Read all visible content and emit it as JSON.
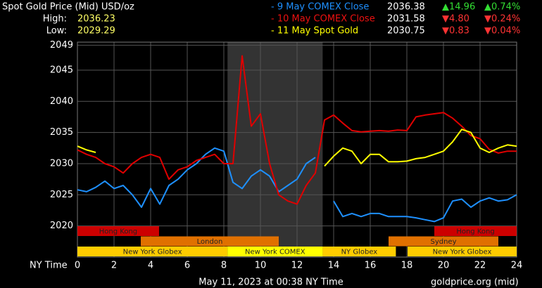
{
  "header": {
    "title": "Spot Gold Price (Mid) USD/oz",
    "high_label": "High:",
    "high": "2036.23",
    "low_label": "Low:",
    "low": "2029.29",
    "rows": [
      {
        "label": "- 9 May COMEX Close",
        "price": "2036.38",
        "change": "▲14.96",
        "percent": "▲0.74%",
        "color": "#1e90ff",
        "change_color": "#33dd33"
      },
      {
        "label": "- 10 May COMEX Close",
        "price": "2031.58",
        "change": "▼4.80",
        "percent": "▼0.24%",
        "color": "#ee1111",
        "change_color": "#ff3333"
      },
      {
        "label": "- 11 May Spot Gold",
        "price": "2030.75",
        "change": "▼0.83",
        "percent": "▼0.04%",
        "color": "#ffff00",
        "change_color": "#ff3333"
      }
    ]
  },
  "chart_data": {
    "type": "line",
    "x_label": "NY Time",
    "footer": "May 11, 2023 at 00:38 NY Time",
    "source": "goldprice.org (mid)",
    "x": [
      0,
      0.5,
      1,
      1.5,
      2,
      2.5,
      3,
      3.5,
      4,
      4.5,
      5,
      5.5,
      6,
      6.5,
      7,
      7.5,
      8,
      8.5,
      9,
      9.5,
      10,
      10.5,
      11,
      11.5,
      12,
      12.5,
      13,
      13.5,
      14,
      14.5,
      15,
      15.5,
      16,
      16.5,
      17,
      17.5,
      18,
      18.5,
      19,
      19.5,
      20,
      20.5,
      21,
      21.5,
      22,
      22.5,
      23,
      23.5,
      24
    ],
    "series": [
      {
        "name": "9 May COMEX Close",
        "color": "#1e90ff",
        "values": [
          2025.8,
          2025.5,
          2026.2,
          2027.2,
          2026,
          2026.5,
          2025,
          2023,
          2026,
          2023.5,
          2026.5,
          2027.5,
          2029,
          2030,
          2031.5,
          2032.5,
          2032,
          2027,
          2026,
          2028,
          2029,
          2028,
          2025.5,
          2026.5,
          2027.5,
          2030,
          2031,
          null,
          2024,
          2021.5,
          2022,
          2021.5,
          2022,
          2022,
          2021.5,
          2021.5,
          2021.5,
          2021.3,
          2021,
          2020.7,
          2021.3,
          2024,
          2024.3,
          2023,
          2024,
          2024.5,
          2024,
          2024.2,
          2025
        ]
      },
      {
        "name": "10 May COMEX Close",
        "color": "#e00000",
        "values": [
          2032.2,
          2031.5,
          2031,
          2030,
          2029.5,
          2028.5,
          2030,
          2031,
          2031.5,
          2031,
          2027.5,
          2029,
          2029.5,
          2030.5,
          2031,
          2031.5,
          2030,
          2030,
          2047.3,
          2036,
          2038,
          2030,
          2025,
          2024,
          2023.5,
          2026.5,
          2028.5,
          2037,
          2037.8,
          2036.5,
          2035.3,
          2035.1,
          2035.2,
          2035.3,
          2035.2,
          2035.4,
          2035.3,
          2037.5,
          2037.8,
          2038,
          2038.2,
          2037.3,
          2036,
          2034.5,
          2034,
          2032.3,
          2031.7,
          2032,
          2032
        ]
      },
      {
        "name": "11 May Spot Gold",
        "color": "#ffff00",
        "values": [
          2032.8,
          2032.2,
          2031.8,
          null,
          null,
          null,
          null,
          null,
          null,
          null,
          null,
          null,
          null,
          null,
          null,
          null,
          null,
          null,
          null,
          null,
          null,
          null,
          null,
          null,
          null,
          null,
          null,
          2029.6,
          2031.2,
          2032.5,
          2032,
          2030,
          2031.5,
          2031.5,
          2030.3,
          2030.3,
          2030.4,
          2030.8,
          2031,
          2031.5,
          2032,
          2033.5,
          2035.5,
          2035,
          2032.5,
          2031.8,
          2032.5,
          2033,
          2032.8
        ]
      }
    ],
    "xlim": [
      0,
      24
    ],
    "xticks": [
      0,
      2,
      4,
      6,
      8,
      10,
      12,
      14,
      16,
      18,
      20,
      22,
      24
    ],
    "ylim": [
      2015,
      2049.5
    ],
    "yticks": [
      2020,
      2025,
      2030,
      2035,
      2040,
      2045,
      2049
    ],
    "grid": true,
    "shaded_hours": [
      8.2,
      13.4
    ],
    "sessions": [
      {
        "label": "Hong Kong",
        "start": 0,
        "end": 4.46,
        "row": 0,
        "color": "#cc0000"
      },
      {
        "label": "Hong Kong",
        "start": 19.5,
        "end": 24,
        "row": 0,
        "color": "#cc0000"
      },
      {
        "label": "London",
        "start": 3.46,
        "end": 11,
        "row": 1,
        "color": "#e07000"
      },
      {
        "label": "Sydney",
        "start": 17,
        "end": 23,
        "row": 1,
        "color": "#e07000"
      },
      {
        "label": "New York Globex",
        "start": 0,
        "end": 8.2,
        "row": 2,
        "color": "#ffcc00"
      },
      {
        "label": "New York COMEX",
        "start": 8.2,
        "end": 13.4,
        "row": 2,
        "color": "#ffff00"
      },
      {
        "label": "NY Globex",
        "start": 13.4,
        "end": 17.4,
        "row": 2,
        "color": "#ffcc00"
      },
      {
        "label": "New York Globex",
        "start": 18.04,
        "end": 24,
        "row": 2,
        "color": "#ffcc00"
      }
    ]
  }
}
